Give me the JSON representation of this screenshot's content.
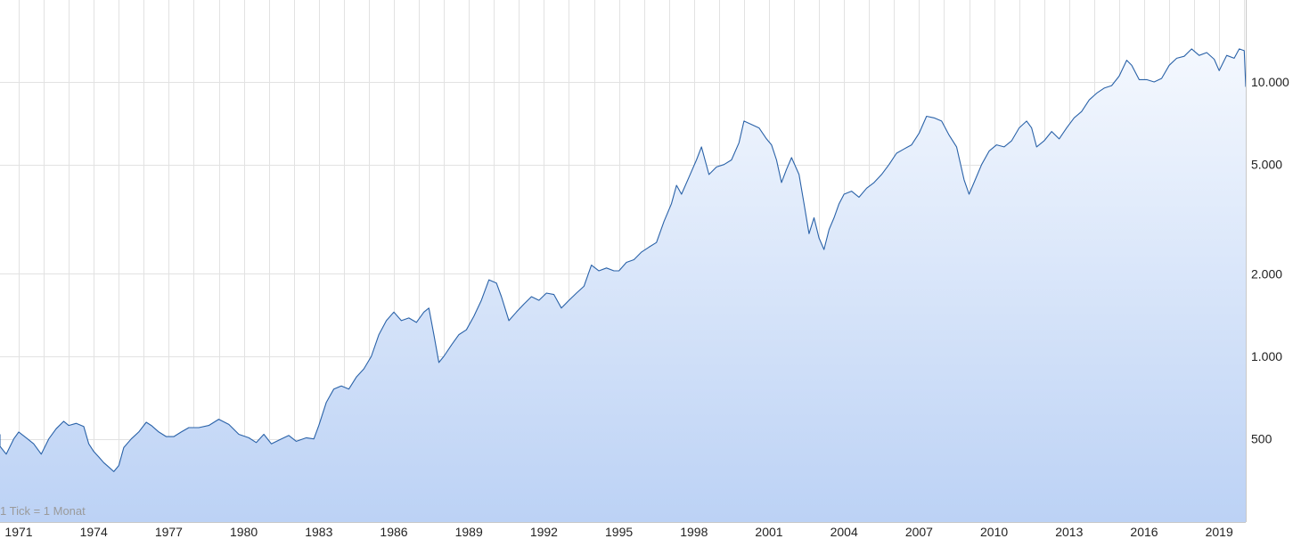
{
  "chart_data": {
    "type": "area",
    "note": "1 Tick = 1 Monat",
    "x_tick_labels": [
      "1971",
      "1974",
      "1977",
      "1980",
      "1983",
      "1986",
      "1989",
      "1992",
      "1995",
      "1998",
      "2001",
      "2004",
      "2007",
      "2010",
      "2013",
      "2016",
      "2019"
    ],
    "x_range": [
      1970.0,
      2020.0
    ],
    "y_scale": "log",
    "y_range": [
      300,
      16000
    ],
    "y_ticks": [
      {
        "value": 500,
        "label": "500"
      },
      {
        "value": 1000,
        "label": "1.000"
      },
      {
        "value": 2000,
        "label": "2.000"
      },
      {
        "value": 5000,
        "label": "5.000"
      },
      {
        "value": 10000,
        "label": "10.000"
      }
    ],
    "grid": true,
    "colors": {
      "line": "#2a62a8",
      "fill_top": "#f4f8fe",
      "fill_bottom": "#bcd2f5",
      "grid": "#e2e2e2",
      "axis": "#c8c8c8"
    },
    "series": [
      {
        "points": [
          [
            1970.0,
            520
          ],
          [
            1970.2,
            470
          ],
          [
            1970.5,
            440
          ],
          [
            1970.8,
            500
          ],
          [
            1971.0,
            530
          ],
          [
            1971.3,
            505
          ],
          [
            1971.6,
            480
          ],
          [
            1971.9,
            440
          ],
          [
            1972.2,
            500
          ],
          [
            1972.5,
            545
          ],
          [
            1972.8,
            580
          ],
          [
            1973.0,
            560
          ],
          [
            1973.3,
            570
          ],
          [
            1973.6,
            555
          ],
          [
            1973.8,
            480
          ],
          [
            1974.0,
            450
          ],
          [
            1974.2,
            430
          ],
          [
            1974.4,
            410
          ],
          [
            1974.6,
            395
          ],
          [
            1974.8,
            380
          ],
          [
            1975.0,
            400
          ],
          [
            1975.2,
            465
          ],
          [
            1975.5,
            500
          ],
          [
            1975.8,
            530
          ],
          [
            1976.1,
            575
          ],
          [
            1976.3,
            560
          ],
          [
            1976.6,
            530
          ],
          [
            1976.9,
            510
          ],
          [
            1977.2,
            510
          ],
          [
            1977.5,
            530
          ],
          [
            1977.8,
            550
          ],
          [
            1978.2,
            550
          ],
          [
            1978.6,
            560
          ],
          [
            1979.0,
            590
          ],
          [
            1979.4,
            565
          ],
          [
            1979.8,
            520
          ],
          [
            1980.2,
            505
          ],
          [
            1980.5,
            485
          ],
          [
            1980.8,
            520
          ],
          [
            1981.1,
            480
          ],
          [
            1981.5,
            500
          ],
          [
            1981.8,
            515
          ],
          [
            1982.1,
            490
          ],
          [
            1982.5,
            505
          ],
          [
            1982.8,
            500
          ],
          [
            1983.0,
            560
          ],
          [
            1983.3,
            680
          ],
          [
            1983.6,
            760
          ],
          [
            1983.9,
            780
          ],
          [
            1984.2,
            760
          ],
          [
            1984.5,
            840
          ],
          [
            1984.8,
            900
          ],
          [
            1985.1,
            1000
          ],
          [
            1985.4,
            1200
          ],
          [
            1985.7,
            1350
          ],
          [
            1986.0,
            1450
          ],
          [
            1986.3,
            1350
          ],
          [
            1986.6,
            1380
          ],
          [
            1986.9,
            1330
          ],
          [
            1987.2,
            1450
          ],
          [
            1987.4,
            1500
          ],
          [
            1987.6,
            1200
          ],
          [
            1987.8,
            950
          ],
          [
            1988.0,
            1000
          ],
          [
            1988.3,
            1100
          ],
          [
            1988.6,
            1200
          ],
          [
            1988.9,
            1250
          ],
          [
            1989.2,
            1400
          ],
          [
            1989.5,
            1600
          ],
          [
            1989.8,
            1900
          ],
          [
            1990.1,
            1850
          ],
          [
            1990.3,
            1650
          ],
          [
            1990.6,
            1350
          ],
          [
            1990.9,
            1450
          ],
          [
            1991.2,
            1550
          ],
          [
            1991.5,
            1650
          ],
          [
            1991.8,
            1600
          ],
          [
            1992.1,
            1700
          ],
          [
            1992.4,
            1680
          ],
          [
            1992.7,
            1500
          ],
          [
            1993.0,
            1600
          ],
          [
            1993.3,
            1700
          ],
          [
            1993.6,
            1800
          ],
          [
            1993.9,
            2150
          ],
          [
            1994.2,
            2050
          ],
          [
            1994.5,
            2100
          ],
          [
            1994.8,
            2050
          ],
          [
            1995.0,
            2050
          ],
          [
            1995.3,
            2200
          ],
          [
            1995.6,
            2250
          ],
          [
            1995.9,
            2400
          ],
          [
            1996.2,
            2500
          ],
          [
            1996.5,
            2600
          ],
          [
            1996.8,
            3100
          ],
          [
            1997.1,
            3600
          ],
          [
            1997.3,
            4200
          ],
          [
            1997.5,
            3900
          ],
          [
            1997.8,
            4500
          ],
          [
            1998.1,
            5200
          ],
          [
            1998.3,
            5800
          ],
          [
            1998.6,
            4600
          ],
          [
            1998.9,
            4900
          ],
          [
            1999.2,
            5000
          ],
          [
            1999.5,
            5200
          ],
          [
            1999.8,
            6000
          ],
          [
            2000.0,
            7200
          ],
          [
            2000.3,
            7000
          ],
          [
            2000.6,
            6800
          ],
          [
            2000.9,
            6200
          ],
          [
            2001.1,
            5900
          ],
          [
            2001.3,
            5200
          ],
          [
            2001.5,
            4300
          ],
          [
            2001.7,
            4800
          ],
          [
            2001.9,
            5300
          ],
          [
            2002.2,
            4600
          ],
          [
            2002.4,
            3600
          ],
          [
            2002.6,
            2800
          ],
          [
            2002.8,
            3200
          ],
          [
            2003.0,
            2700
          ],
          [
            2003.2,
            2450
          ],
          [
            2003.4,
            2900
          ],
          [
            2003.6,
            3200
          ],
          [
            2003.8,
            3600
          ],
          [
            2004.0,
            3900
          ],
          [
            2004.3,
            4000
          ],
          [
            2004.6,
            3800
          ],
          [
            2004.9,
            4100
          ],
          [
            2005.2,
            4300
          ],
          [
            2005.5,
            4600
          ],
          [
            2005.8,
            5000
          ],
          [
            2006.1,
            5500
          ],
          [
            2006.4,
            5700
          ],
          [
            2006.7,
            5900
          ],
          [
            2007.0,
            6500
          ],
          [
            2007.3,
            7500
          ],
          [
            2007.6,
            7400
          ],
          [
            2007.9,
            7200
          ],
          [
            2008.2,
            6400
          ],
          [
            2008.5,
            5800
          ],
          [
            2008.8,
            4400
          ],
          [
            2009.0,
            3900
          ],
          [
            2009.2,
            4300
          ],
          [
            2009.5,
            5000
          ],
          [
            2009.8,
            5600
          ],
          [
            2010.1,
            5900
          ],
          [
            2010.4,
            5800
          ],
          [
            2010.7,
            6100
          ],
          [
            2011.0,
            6800
          ],
          [
            2011.3,
            7200
          ],
          [
            2011.5,
            6800
          ],
          [
            2011.7,
            5800
          ],
          [
            2012.0,
            6100
          ],
          [
            2012.3,
            6600
          ],
          [
            2012.6,
            6200
          ],
          [
            2012.9,
            6800
          ],
          [
            2013.2,
            7400
          ],
          [
            2013.5,
            7800
          ],
          [
            2013.8,
            8600
          ],
          [
            2014.1,
            9100
          ],
          [
            2014.4,
            9500
          ],
          [
            2014.7,
            9700
          ],
          [
            2015.0,
            10500
          ],
          [
            2015.3,
            12000
          ],
          [
            2015.5,
            11500
          ],
          [
            2015.8,
            10200
          ],
          [
            2016.1,
            10200
          ],
          [
            2016.4,
            10000
          ],
          [
            2016.7,
            10300
          ],
          [
            2017.0,
            11500
          ],
          [
            2017.3,
            12200
          ],
          [
            2017.6,
            12400
          ],
          [
            2017.9,
            13200
          ],
          [
            2018.2,
            12500
          ],
          [
            2018.5,
            12800
          ],
          [
            2018.8,
            12100
          ],
          [
            2019.0,
            11000
          ],
          [
            2019.3,
            12500
          ],
          [
            2019.6,
            12200
          ],
          [
            2019.8,
            13200
          ],
          [
            2020.0,
            13000
          ],
          [
            2020.1,
            9600
          ]
        ]
      }
    ]
  }
}
